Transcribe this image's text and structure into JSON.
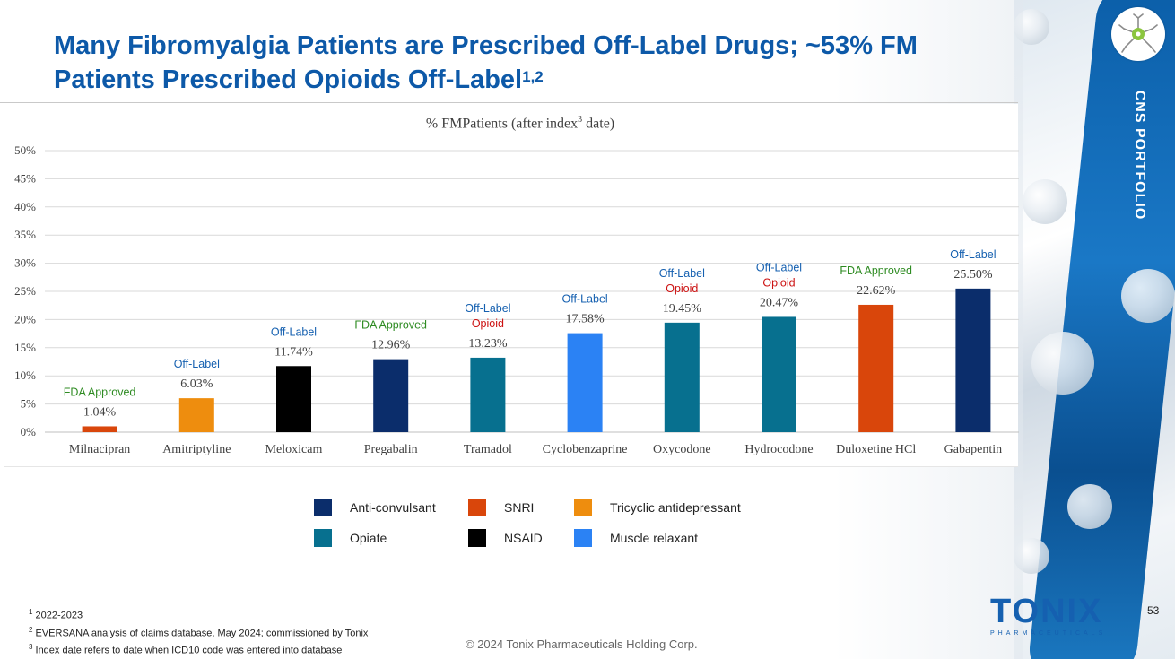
{
  "slide": {
    "title_main": "Many Fibromyalgia Patients are Prescribed Off-Label Drugs; ~53% FM Patients Prescribed Opioids Off-Label",
    "title_sup": "1,2",
    "side_label": "CNS PORTFOLIO",
    "page_number": "53",
    "copyright": "© 2024 Tonix Pharmaceuticals Holding Corp.",
    "logo_word": "TONIX",
    "logo_sub": "PHARMACEUTICALS"
  },
  "chart_title": {
    "prefix": "% FMPatients (after index",
    "sup": "3",
    "suffix": " date)"
  },
  "chart_data": {
    "type": "bar",
    "title": "% FMPatients (after index3 date)",
    "xlabel": "",
    "ylabel": "",
    "ylim": [
      0,
      50
    ],
    "yticks": [
      "0%",
      "5%",
      "10%",
      "15%",
      "20%",
      "25%",
      "30%",
      "35%",
      "40%",
      "45%",
      "50%"
    ],
    "grid": true,
    "categories": [
      "Milnacipran",
      "Amitriptyline",
      "Meloxicam",
      "Pregabalin",
      "Tramadol",
      "Cyclobenzaprine",
      "Oxycodone",
      "Hydrocodone",
      "Duloxetine HCl",
      "Gabapentin"
    ],
    "values": [
      1.04,
      6.03,
      11.74,
      12.96,
      13.23,
      17.58,
      19.45,
      20.47,
      22.62,
      25.5
    ],
    "value_labels": [
      "1.04%",
      "6.03%",
      "11.74%",
      "12.96%",
      "13.23%",
      "17.58%",
      "19.45%",
      "20.47%",
      "22.62%",
      "25.50%"
    ],
    "drug_class": [
      "SNRI",
      "Tricyclic antidepressant",
      "NSAID",
      "Anti-convulsant",
      "Opiate",
      "Muscle relaxant",
      "Opiate",
      "Opiate",
      "SNRI",
      "Anti-convulsant"
    ],
    "status_labels": [
      "FDA Approved",
      "Off-Label",
      "Off-Label",
      "FDA Approved",
      "Off-Label",
      "Off-Label",
      "Off-Label",
      "Off-Label",
      "FDA Approved",
      "Off-Label"
    ],
    "opioid_flags": [
      "",
      "",
      "",
      "",
      "Opioid",
      "",
      "Opioid",
      "Opioid",
      "",
      ""
    ],
    "class_colors": {
      "Anti-convulsant": "#0b2d6b",
      "SNRI": "#d9460b",
      "Tricyclic antidepressant": "#ee8d0e",
      "Opiate": "#07708f",
      "NSAID": "#000000",
      "Muscle relaxant": "#2b82f4"
    },
    "status_colors": {
      "FDA Approved": "#2e8b22",
      "Off-Label": "#1560b0",
      "Opioid": "#cc1111"
    }
  },
  "legend": [
    {
      "label": "Anti-convulsant",
      "color": "#0b2d6b"
    },
    {
      "label": "SNRI",
      "color": "#d9460b"
    },
    {
      "label": "Tricyclic antidepressant",
      "color": "#ee8d0e"
    },
    {
      "label": "Opiate",
      "color": "#07708f"
    },
    {
      "label": "NSAID",
      "color": "#000000"
    },
    {
      "label": "Muscle relaxant",
      "color": "#2b82f4"
    }
  ],
  "footnotes": [
    {
      "num": "1",
      "text": " 2022-2023"
    },
    {
      "num": "2",
      "text": " EVERSANA analysis of claims database, May 2024; commissioned by Tonix"
    },
    {
      "num": "3",
      "text": " Index date refers to date when ICD10 code was entered into database"
    }
  ]
}
